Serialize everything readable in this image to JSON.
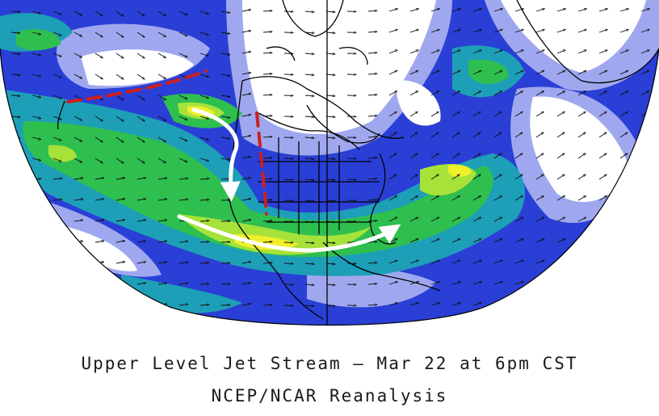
{
  "map": {
    "title": "Upper Level Jet Stream – Mar 22 at 6pm CST",
    "subtitle": "NCEP/NCAR Reanalysis",
    "projection": "north-polar-stereographic",
    "colors": {
      "background": "#ffffff",
      "speed_low": "#9fa8ef",
      "speed_mid_low": "#2a3fd6",
      "speed_mid": "#1d9fb8",
      "speed_high": "#2fbf4f",
      "speed_very_high": "#a6e23a",
      "speed_max": "#f0f02a",
      "coastline": "#000000",
      "wind_vector": "#111111",
      "flow_arrow": "#ffffff",
      "trough_line": "#cc1f1f"
    },
    "overlays": {
      "trough_lines": 2,
      "flow_arrows": 2
    }
  }
}
